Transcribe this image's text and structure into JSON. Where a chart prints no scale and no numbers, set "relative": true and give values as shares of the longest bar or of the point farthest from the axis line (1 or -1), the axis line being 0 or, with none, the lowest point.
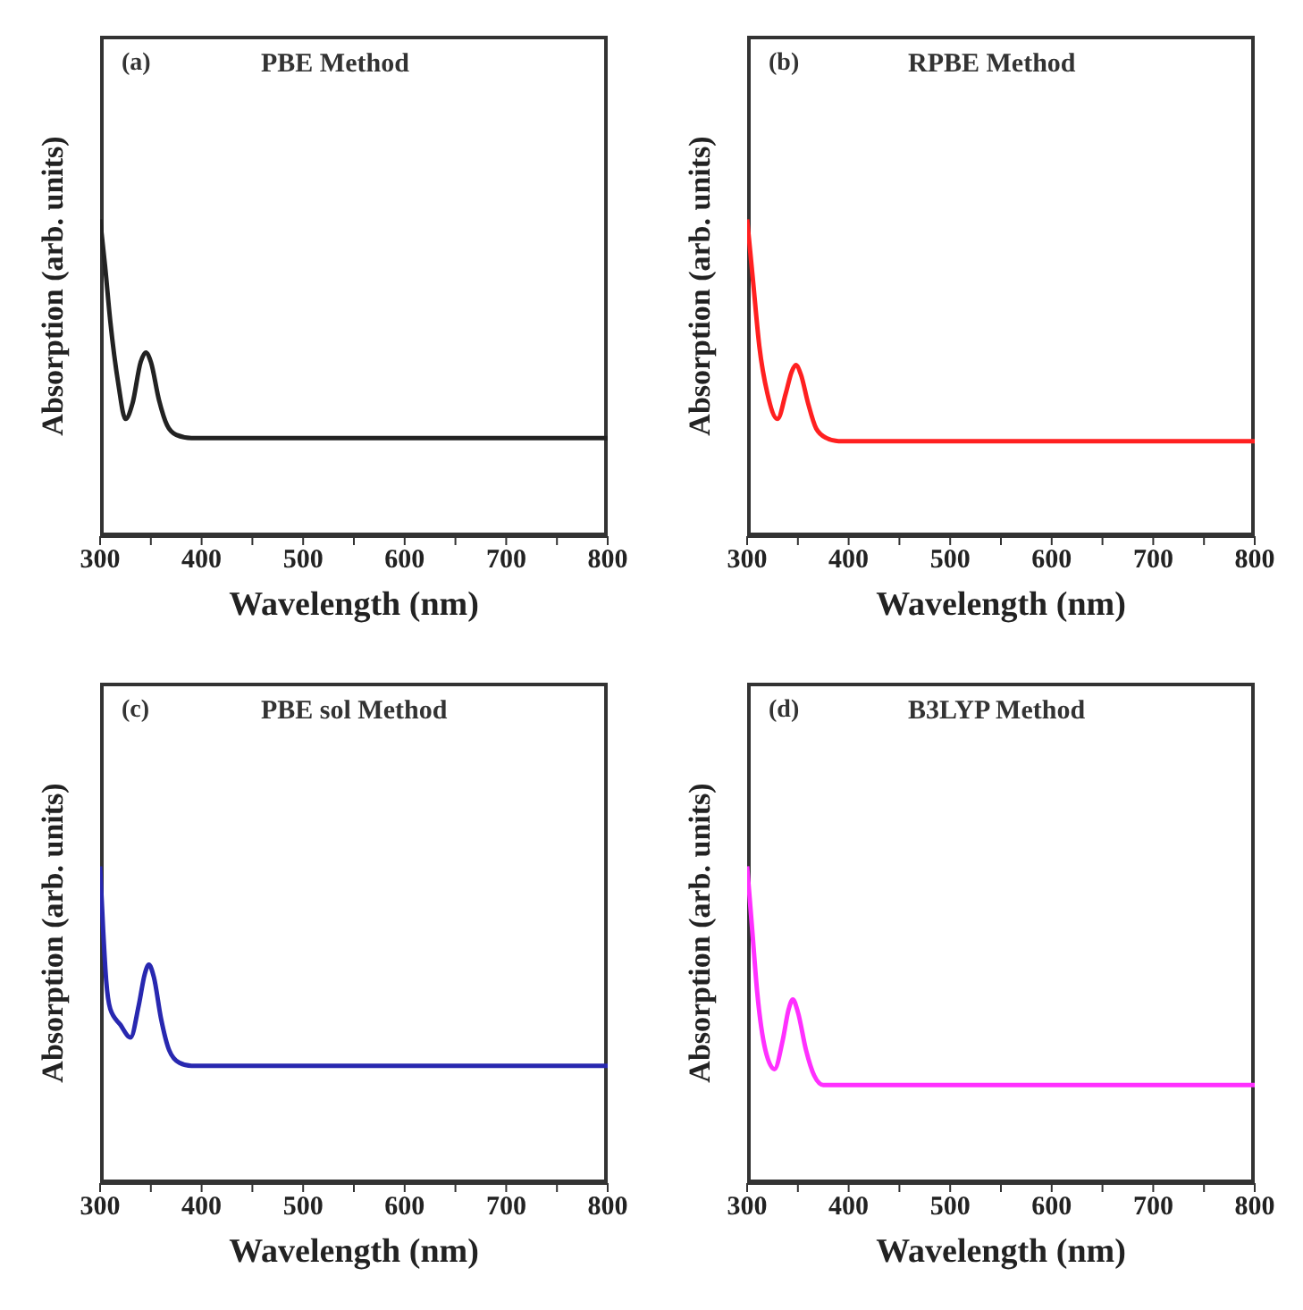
{
  "chart_data": [
    {
      "type": "line",
      "title": "PBE Method",
      "annotations": [
        "(a)"
      ],
      "xlabel": "Wavelength (nm)",
      "ylabel": "Absorption (arb. units)",
      "relative": true,
      "xlim": [
        300,
        800
      ],
      "xticks": [
        300,
        {
          "value": 350,
          "label": null
        },
        400,
        {
          "value": 450,
          "label": null
        },
        500,
        {
          "value": 550,
          "label": null
        },
        600,
        {
          "value": 650,
          "label": null
        },
        700,
        {
          "value": 750,
          "label": null
        },
        800
      ],
      "series": [
        {
          "color": "#222222",
          "x": [
            300,
            305,
            310,
            318,
            325,
            332,
            340,
            345,
            350,
            358,
            366,
            375,
            390,
            500,
            800
          ],
          "values": [
            1,
            0.85,
            0.68,
            0.48,
            0.37,
            0.42,
            0.55,
            0.58,
            0.55,
            0.43,
            0.35,
            0.32,
            0.31,
            0.31,
            0.31
          ]
        }
      ]
    },
    {
      "type": "line",
      "title": "RPBE Method",
      "annotations": [
        "(b)"
      ],
      "xlabel": "Wavelength (nm)",
      "ylabel": "Absorption (arb. units)",
      "relative": true,
      "xlim": [
        300,
        800
      ],
      "xticks": [
        300,
        {
          "value": 350,
          "label": null
        },
        400,
        {
          "value": 450,
          "label": null
        },
        500,
        {
          "value": 550,
          "label": null
        },
        600,
        {
          "value": 650,
          "label": null
        },
        700,
        {
          "value": 750,
          "label": null
        },
        800
      ],
      "series": [
        {
          "color": "#ff2020",
          "x": [
            300,
            306,
            312,
            320,
            330,
            338,
            344,
            348,
            353,
            360,
            368,
            378,
            390,
            500,
            800
          ],
          "values": [
            1,
            0.8,
            0.6,
            0.45,
            0.37,
            0.45,
            0.52,
            0.54,
            0.51,
            0.42,
            0.34,
            0.31,
            0.3,
            0.3,
            0.3
          ]
        }
      ]
    },
    {
      "type": "line",
      "title": "PBE sol Method",
      "annotations": [
        "(c)"
      ],
      "xlabel": "Wavelength (nm)",
      "ylabel": "Absorption (arb. units)",
      "relative": true,
      "xlim": [
        300,
        800
      ],
      "xticks": [
        300,
        {
          "value": 350,
          "label": null
        },
        400,
        {
          "value": 450,
          "label": null
        },
        500,
        {
          "value": 550,
          "label": null
        },
        600,
        {
          "value": 650,
          "label": null
        },
        700,
        {
          "value": 750,
          "label": null
        },
        800
      ],
      "series": [
        {
          "color": "#2828b0",
          "x": [
            300,
            303,
            306,
            310,
            320,
            330,
            338,
            344,
            348,
            353,
            360,
            368,
            378,
            390,
            500,
            800
          ],
          "values": [
            1,
            0.8,
            0.64,
            0.55,
            0.5,
            0.46,
            0.56,
            0.66,
            0.69,
            0.65,
            0.52,
            0.42,
            0.38,
            0.37,
            0.37,
            0.37
          ]
        }
      ]
    },
    {
      "type": "line",
      "title": "B3LYP Method",
      "annotations": [
        "(d)"
      ],
      "xlabel": "Wavelength (nm)",
      "ylabel": "Absorption (arb. units)",
      "relative": true,
      "xlim": [
        300,
        800
      ],
      "xticks": [
        300,
        {
          "value": 350,
          "label": null
        },
        400,
        {
          "value": 450,
          "label": null
        },
        500,
        {
          "value": 550,
          "label": null
        },
        600,
        {
          "value": 650,
          "label": null
        },
        700,
        {
          "value": 750,
          "label": null
        },
        800
      ],
      "series": [
        {
          "color": "#ff30ff",
          "x": [
            300,
            305,
            310,
            318,
            327,
            335,
            341,
            345,
            350,
            358,
            366,
            375,
            390,
            500,
            800
          ],
          "values": [
            1,
            0.8,
            0.6,
            0.42,
            0.36,
            0.45,
            0.55,
            0.58,
            0.54,
            0.42,
            0.34,
            0.31,
            0.31,
            0.31,
            0.31
          ]
        }
      ]
    }
  ]
}
